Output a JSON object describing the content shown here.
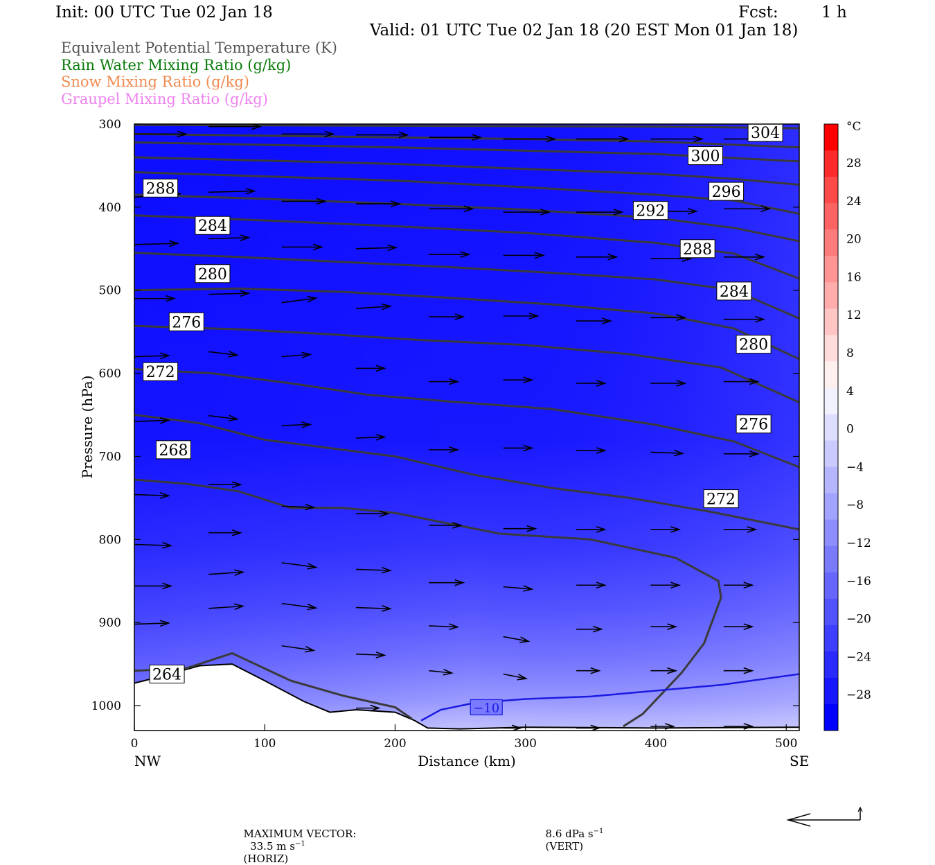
{
  "header": {
    "init": "Init: 00 UTC Tue 02 Jan 18",
    "fcst_label": "Fcst:",
    "fcst_value": "1 h",
    "valid": "Valid: 01 UTC Tue 02 Jan 18 (20 EST Mon 01 Jan 18)"
  },
  "fields": [
    {
      "label": "Equivalent Potential Temperature (K)",
      "color": "#555555"
    },
    {
      "label": "Rain Water Mixing Ratio (g/kg)",
      "color": "#0a7a0a"
    },
    {
      "label": "Snow Mixing Ratio (g/kg)",
      "color": "#f08a50"
    },
    {
      "label": "Graupel Mixing Ratio (g/kg)",
      "color": "#ee82ee"
    }
  ],
  "chart_data": {
    "type": "cross-section",
    "xlabel": "Distance (km)",
    "ylabel": "Pressure (hPa)",
    "xlim": [
      0,
      510
    ],
    "ylim": [
      1030,
      300
    ],
    "xticks": [
      "0",
      "100",
      "200",
      "300",
      "400",
      "500"
    ],
    "yticks": [
      "300",
      "400",
      "500",
      "600",
      "700",
      "800",
      "900",
      "1000"
    ],
    "left_end_label": "NW",
    "right_end_label": "SE",
    "colorbar": {
      "unit": "°C",
      "labels": [
        "28",
        "24",
        "20",
        "16",
        "12",
        "8",
        "4",
        "0",
        "−4",
        "−8",
        "−12",
        "−16",
        "−20",
        "−24",
        "−28"
      ],
      "colors": [
        "#ff0000",
        "#ff2a2a",
        "#ff4a4a",
        "#ff6464",
        "#ff7c7c",
        "#ff9494",
        "#ffacac",
        "#ffc4c4",
        "#ffdcdc",
        "#fff0f0",
        "#f2f2ff",
        "#dedeff",
        "#cacaff",
        "#b6b6ff",
        "#a2a2ff",
        "#8e8eff",
        "#7a7aff",
        "#6666ff",
        "#5252ff",
        "#3e3eff",
        "#2a2aff",
        "#1616ff",
        "#0000ff"
      ]
    },
    "theta_e_contours": [
      {
        "label": "264",
        "pts": [
          [
            0,
            958
          ],
          [
            40,
            955
          ],
          [
            75,
            937
          ],
          [
            120,
            970
          ],
          [
            160,
            988
          ],
          [
            200,
            1002
          ],
          [
            213,
            1016
          ]
        ]
      },
      {
        "label": "268",
        "pts": [
          [
            0,
            728
          ],
          [
            40,
            733
          ],
          [
            80,
            742
          ],
          [
            120,
            762
          ],
          [
            160,
            762
          ],
          [
            200,
            768
          ],
          [
            280,
            793
          ],
          [
            350,
            800
          ],
          [
            415,
            822
          ],
          [
            448,
            850
          ],
          [
            450,
            870
          ],
          [
            437,
            925
          ],
          [
            420,
            960
          ],
          [
            390,
            1010
          ],
          [
            375,
            1025
          ]
        ]
      },
      {
        "label": "272",
        "pts": [
          [
            0,
            650
          ],
          [
            50,
            660
          ],
          [
            100,
            680
          ],
          [
            150,
            690
          ],
          [
            200,
            700
          ],
          [
            260,
            722
          ],
          [
            320,
            738
          ],
          [
            380,
            750
          ],
          [
            440,
            766
          ],
          [
            510,
            788
          ]
        ]
      },
      {
        "label": "276",
        "pts": [
          [
            0,
            595
          ],
          [
            60,
            600
          ],
          [
            120,
            612
          ],
          [
            180,
            626
          ],
          [
            250,
            635
          ],
          [
            320,
            643
          ],
          [
            400,
            662
          ],
          [
            460,
            682
          ],
          [
            510,
            713
          ]
        ]
      },
      {
        "label": "280",
        "pts": [
          [
            0,
            543
          ],
          [
            80,
            547
          ],
          [
            150,
            553
          ],
          [
            220,
            560
          ],
          [
            300,
            566
          ],
          [
            380,
            577
          ],
          [
            450,
            593
          ],
          [
            510,
            635
          ]
        ]
      },
      {
        "label": "284",
        "pts": [
          [
            0,
            500
          ],
          [
            80,
            498
          ],
          [
            160,
            502
          ],
          [
            240,
            509
          ],
          [
            320,
            517
          ],
          [
            400,
            528
          ],
          [
            460,
            546
          ],
          [
            510,
            583
          ]
        ]
      },
      {
        "label": "288",
        "pts": [
          [
            0,
            455
          ],
          [
            80,
            460
          ],
          [
            160,
            466
          ],
          [
            240,
            472
          ],
          [
            320,
            479
          ],
          [
            400,
            487
          ],
          [
            460,
            500
          ],
          [
            510,
            534
          ]
        ]
      },
      {
        "label": "292",
        "pts": [
          [
            0,
            410
          ],
          [
            100,
            416
          ],
          [
            200,
            423
          ],
          [
            300,
            431
          ],
          [
            400,
            443
          ],
          [
            460,
            456
          ],
          [
            510,
            486
          ]
        ]
      },
      {
        "label": "296",
        "pts": [
          [
            0,
            385
          ],
          [
            100,
            390
          ],
          [
            200,
            396
          ],
          [
            300,
            403
          ],
          [
            400,
            413
          ],
          [
            460,
            425
          ],
          [
            510,
            441
          ]
        ]
      },
      {
        "label": "300",
        "pts": [
          [
            0,
            358
          ],
          [
            100,
            363
          ],
          [
            200,
            368
          ],
          [
            300,
            376
          ],
          [
            400,
            385
          ],
          [
            460,
            392
          ],
          [
            510,
            408
          ]
        ]
      },
      {
        "label": "304",
        "pts": [
          [
            0,
            340
          ],
          [
            100,
            344
          ],
          [
            200,
            348
          ],
          [
            300,
            354
          ],
          [
            400,
            360
          ],
          [
            460,
            366
          ],
          [
            510,
            373
          ]
        ]
      },
      {
        "label": "",
        "pts": [
          [
            0,
            322
          ],
          [
            100,
            325
          ],
          [
            200,
            328
          ],
          [
            300,
            332
          ],
          [
            400,
            336
          ],
          [
            510,
            345
          ]
        ]
      },
      {
        "label": "",
        "pts": [
          [
            0,
            312
          ],
          [
            100,
            314
          ],
          [
            200,
            316
          ],
          [
            300,
            318
          ],
          [
            400,
            321
          ],
          [
            510,
            328
          ]
        ]
      },
      {
        "label": "",
        "pts": [
          [
            0,
            301
          ],
          [
            200,
            302
          ],
          [
            400,
            303
          ],
          [
            510,
            305
          ]
        ]
      }
    ],
    "temperature_contours": [
      {
        "label": "−10",
        "color": "#1a1ae0",
        "pts": [
          [
            220,
            1018
          ],
          [
            235,
            1005
          ],
          [
            260,
            997
          ],
          [
            300,
            992
          ],
          [
            350,
            989
          ],
          [
            400,
            982
          ],
          [
            450,
            975
          ],
          [
            510,
            962
          ]
        ]
      }
    ],
    "terrain": [
      [
        0,
        973
      ],
      [
        20,
        965
      ],
      [
        50,
        952
      ],
      [
        75,
        950
      ],
      [
        100,
        970
      ],
      [
        130,
        995
      ],
      [
        150,
        1008
      ],
      [
        170,
        1005
      ],
      [
        200,
        1008
      ],
      [
        215,
        1018
      ],
      [
        225,
        1027
      ],
      [
        250,
        1028
      ],
      [
        300,
        1026
      ],
      [
        400,
        1027
      ],
      [
        510,
        1026
      ]
    ],
    "wind_vectors": [
      {
        "x": 0,
        "p": 312,
        "u": 45,
        "w": 0
      },
      {
        "x": 57,
        "p": 303,
        "u": 45,
        "w": 0
      },
      {
        "x": 113,
        "p": 312,
        "u": 45,
        "w": 0
      },
      {
        "x": 170,
        "p": 313,
        "u": 45,
        "w": 0
      },
      {
        "x": 226,
        "p": 316,
        "u": 45,
        "w": 0
      },
      {
        "x": 283,
        "p": 318,
        "u": 45,
        "w": 0
      },
      {
        "x": 339,
        "p": 318,
        "u": 45,
        "w": 0
      },
      {
        "x": 396,
        "p": 318,
        "u": 45,
        "w": 0
      },
      {
        "x": 452,
        "p": 318,
        "u": 45,
        "w": 0
      },
      {
        "x": 0,
        "p": 388,
        "u": 40,
        "w": -3
      },
      {
        "x": 57,
        "p": 382,
        "u": 40,
        "w": -1
      },
      {
        "x": 113,
        "p": 393,
        "u": 38,
        "w": 0
      },
      {
        "x": 170,
        "p": 396,
        "u": 38,
        "w": 0
      },
      {
        "x": 226,
        "p": 402,
        "u": 38,
        "w": 0
      },
      {
        "x": 283,
        "p": 406,
        "u": 40,
        "w": 0
      },
      {
        "x": 339,
        "p": 406,
        "u": 40,
        "w": 0
      },
      {
        "x": 396,
        "p": 405,
        "u": 40,
        "w": 0
      },
      {
        "x": 452,
        "p": 402,
        "u": 40,
        "w": 0
      },
      {
        "x": 0,
        "p": 445,
        "u": 38,
        "w": -1
      },
      {
        "x": 57,
        "p": 438,
        "u": 35,
        "w": -1
      },
      {
        "x": 113,
        "p": 448,
        "u": 35,
        "w": 0
      },
      {
        "x": 170,
        "p": 450,
        "u": 35,
        "w": -1
      },
      {
        "x": 226,
        "p": 457,
        "u": 35,
        "w": 0
      },
      {
        "x": 283,
        "p": 458,
        "u": 35,
        "w": 0
      },
      {
        "x": 339,
        "p": 460,
        "u": 35,
        "w": 0
      },
      {
        "x": 396,
        "p": 462,
        "u": 35,
        "w": 0
      },
      {
        "x": 452,
        "p": 460,
        "u": 35,
        "w": 0
      },
      {
        "x": 0,
        "p": 510,
        "u": 35,
        "w": 0
      },
      {
        "x": 57,
        "p": 505,
        "u": 35,
        "w": -1
      },
      {
        "x": 113,
        "p": 515,
        "u": 30,
        "w": -4
      },
      {
        "x": 170,
        "p": 522,
        "u": 30,
        "w": -2
      },
      {
        "x": 226,
        "p": 532,
        "u": 30,
        "w": 0
      },
      {
        "x": 283,
        "p": 531,
        "u": 30,
        "w": 0
      },
      {
        "x": 339,
        "p": 537,
        "u": 30,
        "w": 0
      },
      {
        "x": 396,
        "p": 533,
        "u": 30,
        "w": 0
      },
      {
        "x": 452,
        "p": 535,
        "u": 35,
        "w": 0
      },
      {
        "x": 0,
        "p": 580,
        "u": 30,
        "w": -1
      },
      {
        "x": 57,
        "p": 574,
        "u": 25,
        "w": 3
      },
      {
        "x": 113,
        "p": 580,
        "u": 25,
        "w": -2
      },
      {
        "x": 170,
        "p": 594,
        "u": 25,
        "w": 0
      },
      {
        "x": 226,
        "p": 610,
        "u": 25,
        "w": 0
      },
      {
        "x": 283,
        "p": 608,
        "u": 25,
        "w": 0
      },
      {
        "x": 339,
        "p": 612,
        "u": 25,
        "w": 0
      },
      {
        "x": 396,
        "p": 612,
        "u": 30,
        "w": 0
      },
      {
        "x": 452,
        "p": 610,
        "u": 30,
        "w": 0
      },
      {
        "x": 0,
        "p": 658,
        "u": 30,
        "w": -1
      },
      {
        "x": 57,
        "p": 651,
        "u": 25,
        "w": 3
      },
      {
        "x": 113,
        "p": 663,
        "u": 25,
        "w": -1
      },
      {
        "x": 170,
        "p": 678,
        "u": 25,
        "w": -1
      },
      {
        "x": 226,
        "p": 692,
        "u": 25,
        "w": 0
      },
      {
        "x": 283,
        "p": 690,
        "u": 25,
        "w": 0
      },
      {
        "x": 339,
        "p": 693,
        "u": 25,
        "w": 0
      },
      {
        "x": 396,
        "p": 695,
        "u": 28,
        "w": 1
      },
      {
        "x": 452,
        "p": 697,
        "u": 30,
        "w": 0
      },
      {
        "x": 0,
        "p": 746,
        "u": 30,
        "w": 1
      },
      {
        "x": 57,
        "p": 734,
        "u": 28,
        "w": 0
      },
      {
        "x": 113,
        "p": 760,
        "u": 28,
        "w": 1
      },
      {
        "x": 170,
        "p": 769,
        "u": 28,
        "w": 0
      },
      {
        "x": 226,
        "p": 783,
        "u": 28,
        "w": 0
      },
      {
        "x": 283,
        "p": 787,
        "u": 28,
        "w": 0
      },
      {
        "x": 339,
        "p": 788,
        "u": 25,
        "w": 0
      },
      {
        "x": 396,
        "p": 788,
        "u": 25,
        "w": 0
      },
      {
        "x": 452,
        "p": 788,
        "u": 28,
        "w": 0
      },
      {
        "x": 0,
        "p": 806,
        "u": 32,
        "w": 1
      },
      {
        "x": 57,
        "p": 792,
        "u": 28,
        "w": 0
      },
      {
        "x": 113,
        "p": 828,
        "u": 30,
        "w": 4
      },
      {
        "x": 170,
        "p": 836,
        "u": 30,
        "w": 1
      },
      {
        "x": 226,
        "p": 852,
        "u": 30,
        "w": 0
      },
      {
        "x": 283,
        "p": 857,
        "u": 25,
        "w": 2
      },
      {
        "x": 339,
        "p": 855,
        "u": 25,
        "w": 0
      },
      {
        "x": 396,
        "p": 855,
        "u": 25,
        "w": 0
      },
      {
        "x": 452,
        "p": 855,
        "u": 25,
        "w": 0
      },
      {
        "x": 0,
        "p": 856,
        "u": 32,
        "w": 0
      },
      {
        "x": 57,
        "p": 842,
        "u": 30,
        "w": -2
      },
      {
        "x": 113,
        "p": 877,
        "u": 30,
        "w": 4
      },
      {
        "x": 170,
        "p": 882,
        "u": 30,
        "w": 1
      },
      {
        "x": 226,
        "p": 904,
        "u": 25,
        "w": 1
      },
      {
        "x": 283,
        "p": 917,
        "u": 22,
        "w": 4
      },
      {
        "x": 339,
        "p": 908,
        "u": 22,
        "w": 0
      },
      {
        "x": 396,
        "p": 905,
        "u": 22,
        "w": 0
      },
      {
        "x": 452,
        "p": 905,
        "u": 25,
        "w": 0
      },
      {
        "x": 0,
        "p": 902,
        "u": 30,
        "w": -1
      },
      {
        "x": 57,
        "p": 883,
        "u": 30,
        "w": -2
      },
      {
        "x": 113,
        "p": 928,
        "u": 28,
        "w": 4
      },
      {
        "x": 170,
        "p": 938,
        "u": 25,
        "w": 1
      },
      {
        "x": 226,
        "p": 958,
        "u": 20,
        "w": 2
      },
      {
        "x": 283,
        "p": 962,
        "u": 20,
        "w": 4
      },
      {
        "x": 339,
        "p": 958,
        "u": 20,
        "w": 0
      },
      {
        "x": 396,
        "p": 958,
        "u": 22,
        "w": 0
      },
      {
        "x": 452,
        "p": 958,
        "u": 25,
        "w": 0
      },
      {
        "x": 170,
        "p": 1003,
        "u": 20,
        "w": 0
      },
      {
        "x": 283,
        "p": 1027,
        "u": 15,
        "w": 0
      },
      {
        "x": 339,
        "p": 1027,
        "u": 20,
        "w": 0
      },
      {
        "x": 396,
        "p": 1025,
        "u": 20,
        "w": 0
      },
      {
        "x": 452,
        "p": 1025,
        "u": 25,
        "w": 0
      }
    ],
    "max_vector": {
      "label": "MAXIMUM VECTOR:",
      "horiz": "33.5 m s",
      "horiz_unit": "(HORIZ)",
      "vert": "8.6 dPa s",
      "vert_unit": "(VERT)",
      "exponent": "−1"
    }
  }
}
